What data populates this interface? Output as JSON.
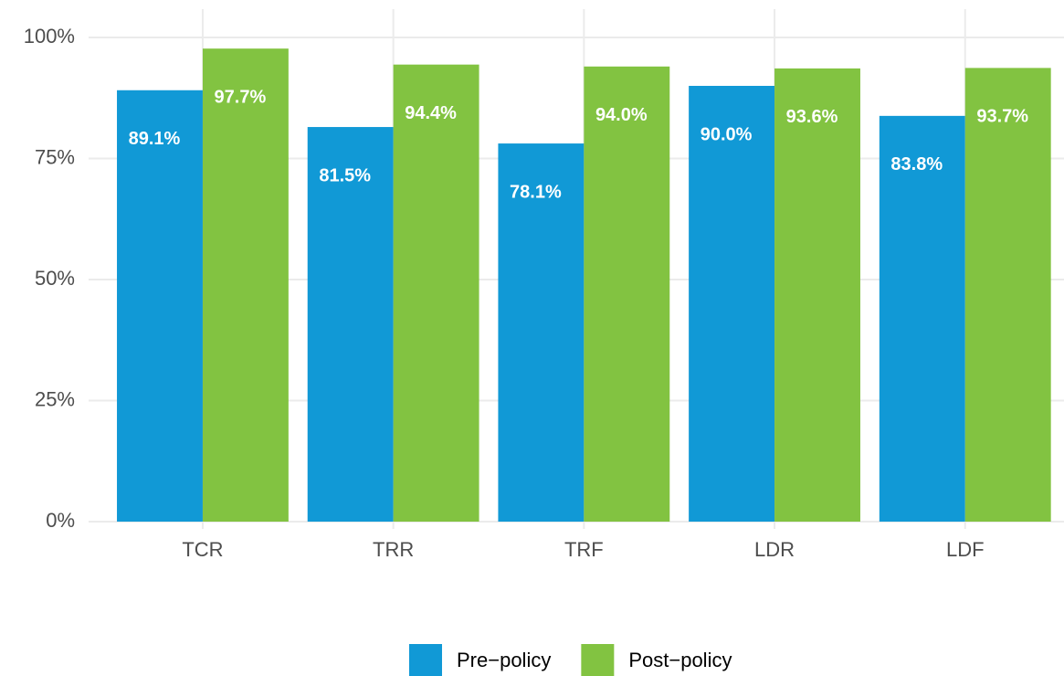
{
  "chart_data": {
    "type": "bar",
    "categories": [
      "TCR",
      "TRR",
      "TRF",
      "LDR",
      "LDF"
    ],
    "series": [
      {
        "name": "Pre−policy",
        "color": "#1199d6",
        "values": [
          89.1,
          81.5,
          78.1,
          90.0,
          83.8
        ],
        "value_labels": [
          "89.1%",
          "81.5%",
          "78.1%",
          "90.0%",
          "83.8%"
        ]
      },
      {
        "name": "Post−policy",
        "color": "#82c341",
        "values": [
          97.7,
          94.4,
          94.0,
          93.6,
          93.7
        ],
        "value_labels": [
          "97.7%",
          "94.4%",
          "94.0%",
          "93.6%",
          "93.7%"
        ]
      }
    ],
    "ylim": [
      0,
      100
    ],
    "yticks": [
      {
        "value": 0,
        "label": "0%"
      },
      {
        "value": 25,
        "label": "25%"
      },
      {
        "value": 50,
        "label": "50%"
      },
      {
        "value": 75,
        "label": "75%"
      },
      {
        "value": 100,
        "label": "100%"
      }
    ],
    "grid": true,
    "legend": "bottom"
  }
}
